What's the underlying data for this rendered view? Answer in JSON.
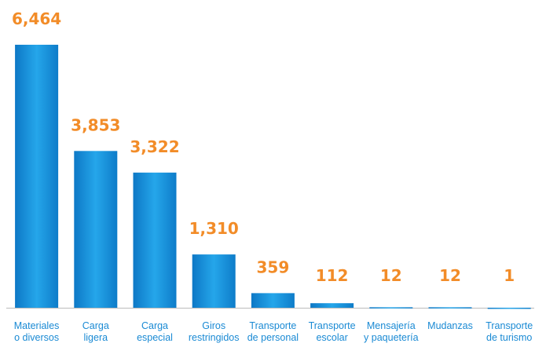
{
  "chart_data": {
    "type": "bar",
    "categories": [
      "Materiales\no diversos",
      "Carga\nligera",
      "Carga\nespecial",
      "Giros\nrestringidos",
      "Transporte\nde personal",
      "Transporte\nescolar",
      "Mensajería\ny paquetería",
      "Mudanzas",
      "Transporte\nde turismo"
    ],
    "values": [
      6464,
      3853,
      3322,
      1310,
      359,
      112,
      12,
      12,
      1
    ],
    "value_labels": [
      "6,464",
      "3,853",
      "3,322",
      "1,310",
      "359",
      "112",
      "12",
      "12",
      "1"
    ],
    "color": "#1690db"
  }
}
